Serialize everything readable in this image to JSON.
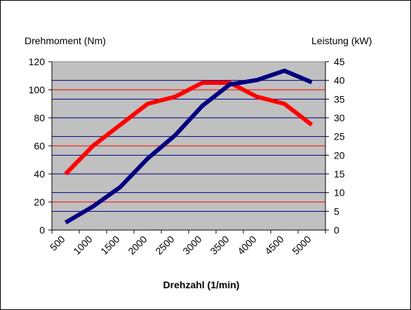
{
  "chart_data": {
    "type": "line",
    "title": "",
    "xlabel": "Drehzahl (1/min)",
    "ylabel_left": "Drehmoment (Nm)",
    "ylabel_right": "Leistung (kW)",
    "categories": [
      "500",
      "1000",
      "1500",
      "2000",
      "2500",
      "3000",
      "3500",
      "4000",
      "4500",
      "5000"
    ],
    "ylim_left": [
      0,
      120
    ],
    "yticks_left": [
      0,
      20,
      40,
      60,
      80,
      100,
      120
    ],
    "ylim_right": [
      0,
      45
    ],
    "yticks_right": [
      0,
      5,
      10,
      15,
      20,
      25,
      30,
      35,
      40,
      45
    ],
    "grid": true,
    "plot_background": "#c0c0c0",
    "series": [
      {
        "axis": "left",
        "color": "#ff0000",
        "values": [
          40,
          60,
          75,
          90,
          95,
          105,
          105,
          95,
          90,
          75
        ]
      },
      {
        "axis": "right",
        "color": "#000080",
        "values": [
          2,
          6.3,
          11.5,
          19.1,
          25.3,
          33.2,
          38.9,
          40.1,
          42.6,
          39.5
        ]
      }
    ]
  }
}
